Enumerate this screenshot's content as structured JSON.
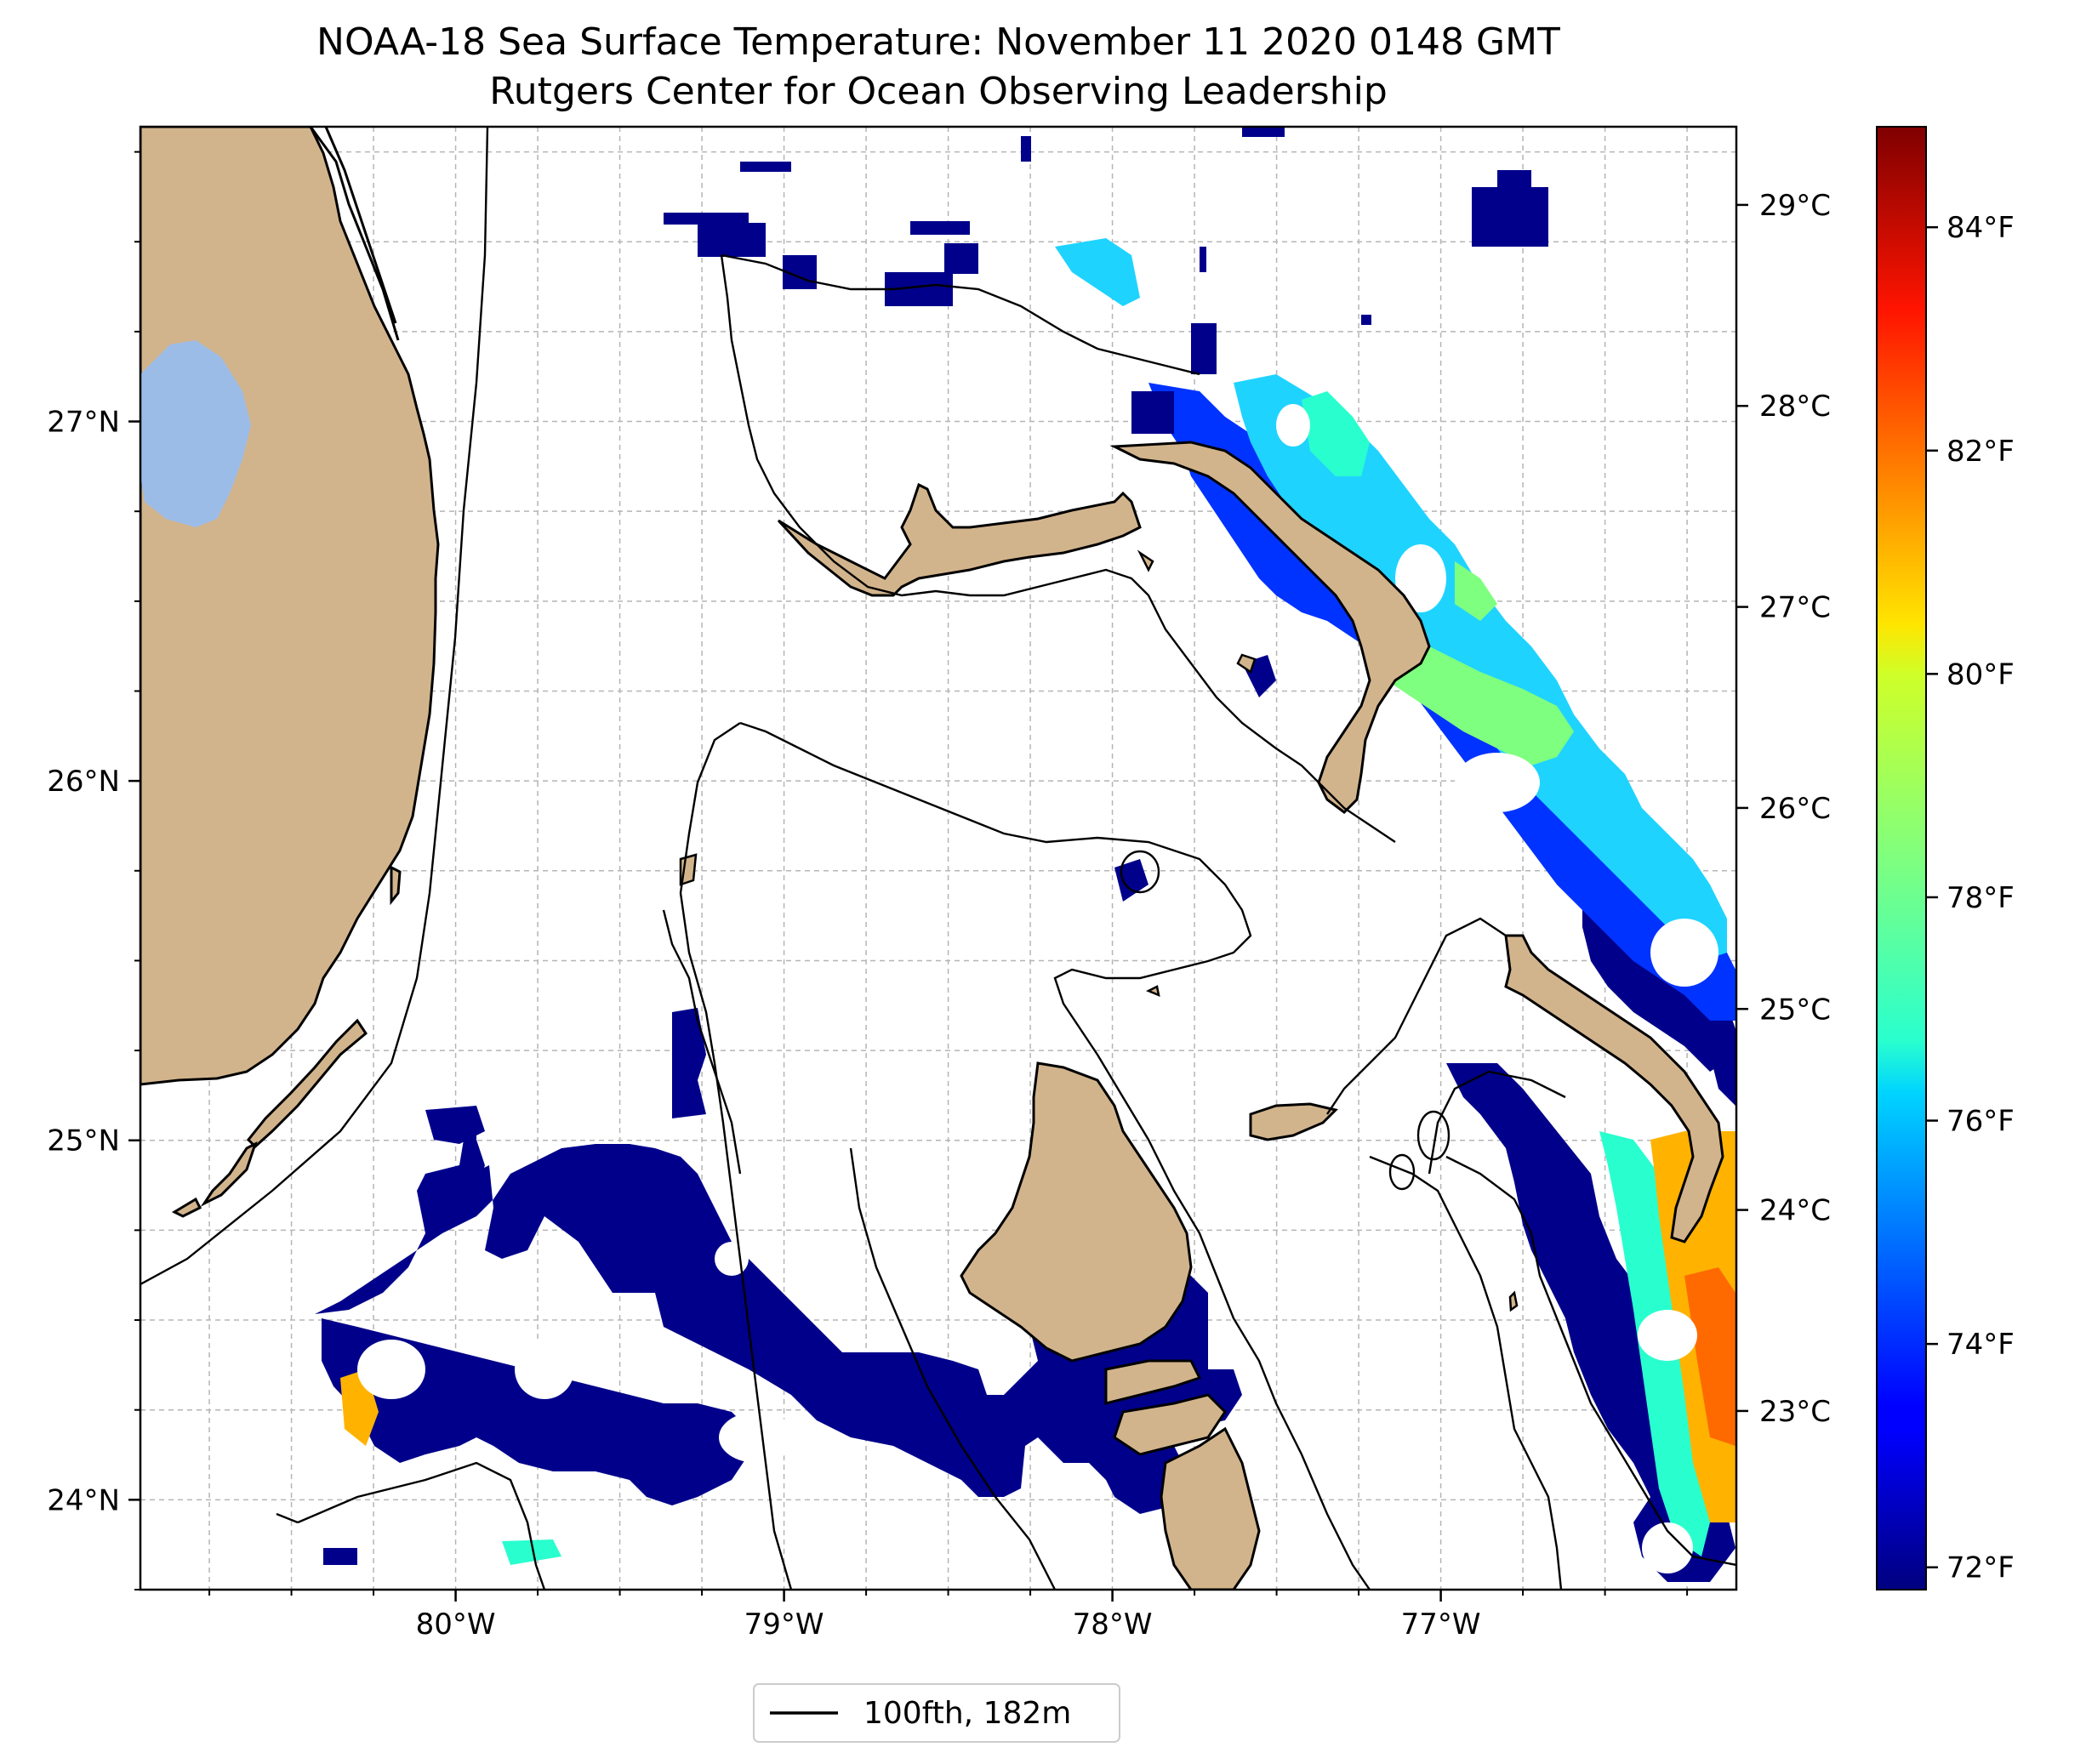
{
  "title": {
    "line1": "NOAA-18 Sea Surface Temperature: November 11 2020 0148 GMT",
    "line2": "Rutgers Center for Ocean Observing Leadership"
  },
  "colors": {
    "land": "#d2b48c",
    "lake": "#9cbce8",
    "coastline": "#000000",
    "grid": "#b0b0b0",
    "sst_cold": "#00008b",
    "sst_warm": "#ff4500",
    "colormap": "jet"
  },
  "map": {
    "lon_range": [
      -80.96,
      -76.1
    ],
    "lat_range": [
      23.75,
      27.82
    ],
    "lon_ticks": [
      {
        "value": -80,
        "label": "80°W"
      },
      {
        "value": -79,
        "label": "79°W"
      },
      {
        "value": -78,
        "label": "78°W"
      },
      {
        "value": -77,
        "label": "77°W"
      }
    ],
    "lat_ticks": [
      {
        "value": 27,
        "label": "27°N"
      },
      {
        "value": 26,
        "label": "26°N"
      },
      {
        "value": 25,
        "label": "25°N"
      },
      {
        "value": 24,
        "label": "24°N"
      }
    ],
    "gridlines": true
  },
  "colorbar": {
    "range_f": [
      71.8,
      84.9
    ],
    "celsius_ticks": [
      {
        "value": 23,
        "label": "23°C"
      },
      {
        "value": 24,
        "label": "24°C"
      },
      {
        "value": 25,
        "label": "25°C"
      },
      {
        "value": 26,
        "label": "26°C"
      },
      {
        "value": 27,
        "label": "27°C"
      },
      {
        "value": 28,
        "label": "28°C"
      },
      {
        "value": 29,
        "label": "29°C"
      }
    ],
    "fahrenheit_ticks": [
      {
        "value": 72,
        "label": "72°F"
      },
      {
        "value": 74,
        "label": "74°F"
      },
      {
        "value": 76,
        "label": "76°F"
      },
      {
        "value": 78,
        "label": "78°F"
      },
      {
        "value": 80,
        "label": "80°F"
      },
      {
        "value": 82,
        "label": "82°F"
      },
      {
        "value": 84,
        "label": "84°F"
      }
    ]
  },
  "legend": {
    "label": "100fth, 182m",
    "placement": "bottom-center"
  }
}
